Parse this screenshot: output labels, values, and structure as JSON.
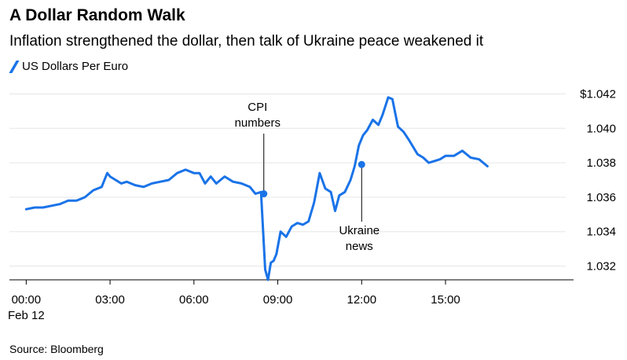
{
  "title": "A Dollar Random Walk",
  "subtitle": "Inflation strengthened the dollar, then talk of Ukraine peace weakened it",
  "source": "Source: Bloomberg",
  "colors": {
    "line": "#1a73e8",
    "grid": "#e6e6e6",
    "axis": "#000000"
  },
  "chart_data": {
    "type": "line",
    "grid": true,
    "legend_position": "top-left",
    "y_tick_labels": [
      "$1.042",
      "1.040",
      "1.038",
      "1.036",
      "1.034",
      "1.032"
    ],
    "y_ticks": [
      1.042,
      1.04,
      1.038,
      1.036,
      1.034,
      1.032
    ],
    "ylim": [
      1.0312,
      1.0428
    ],
    "x_ticks": [
      0,
      3,
      6,
      9,
      12,
      15
    ],
    "x_tick_labels": [
      "00:00",
      "03:00",
      "06:00",
      "09:00",
      "12:00",
      "15:00"
    ],
    "x_sublabel": "Feb 12",
    "xlim": [
      -0.6,
      19.3
    ],
    "series": [
      {
        "name": "US Dollars Per Euro",
        "x": [
          0.0,
          0.3,
          0.6,
          0.9,
          1.2,
          1.5,
          1.8,
          2.1,
          2.4,
          2.7,
          2.9,
          3.0,
          3.2,
          3.4,
          3.6,
          3.9,
          4.2,
          4.5,
          4.8,
          5.1,
          5.4,
          5.7,
          6.0,
          6.2,
          6.4,
          6.6,
          6.8,
          7.1,
          7.4,
          7.7,
          8.0,
          8.2,
          8.4,
          8.55,
          8.65,
          8.75,
          8.85,
          8.95,
          9.1,
          9.3,
          9.5,
          9.7,
          9.9,
          10.1,
          10.3,
          10.5,
          10.7,
          10.9,
          11.05,
          11.2,
          11.4,
          11.6,
          11.75,
          11.9,
          12.05,
          12.2,
          12.4,
          12.6,
          12.75,
          12.95,
          13.1,
          13.3,
          13.5,
          13.7,
          14.0,
          14.2,
          14.4,
          14.6,
          14.8,
          15.0,
          15.3,
          15.6,
          15.9,
          16.2,
          16.5
        ],
        "y": [
          1.0353,
          1.0354,
          1.0354,
          1.0355,
          1.0356,
          1.0358,
          1.0358,
          1.036,
          1.0364,
          1.0366,
          1.0374,
          1.0372,
          1.037,
          1.0368,
          1.0369,
          1.0367,
          1.0366,
          1.0368,
          1.0369,
          1.037,
          1.0374,
          1.0376,
          1.0374,
          1.0374,
          1.0368,
          1.0372,
          1.0368,
          1.0372,
          1.0369,
          1.0368,
          1.0366,
          1.0362,
          1.0363,
          1.0318,
          1.0312,
          1.0322,
          1.0323,
          1.0327,
          1.034,
          1.0337,
          1.0343,
          1.0345,
          1.0344,
          1.0346,
          1.0357,
          1.0374,
          1.0365,
          1.0363,
          1.0352,
          1.0361,
          1.0363,
          1.037,
          1.0378,
          1.039,
          1.0396,
          1.0399,
          1.0405,
          1.0402,
          1.0408,
          1.0418,
          1.0417,
          1.0401,
          1.0398,
          1.0393,
          1.0385,
          1.0383,
          1.038,
          1.0381,
          1.0382,
          1.0384,
          1.0384,
          1.0387,
          1.0383,
          1.0382,
          1.0378
        ]
      }
    ],
    "annotations": [
      {
        "label_lines": [
          "CPI",
          "numbers"
        ],
        "x": 8.5,
        "y": 1.0362,
        "position": "above"
      },
      {
        "label_lines": [
          "Ukraine",
          "news"
        ],
        "x": 12.0,
        "y": 1.0379,
        "position": "below"
      }
    ]
  }
}
